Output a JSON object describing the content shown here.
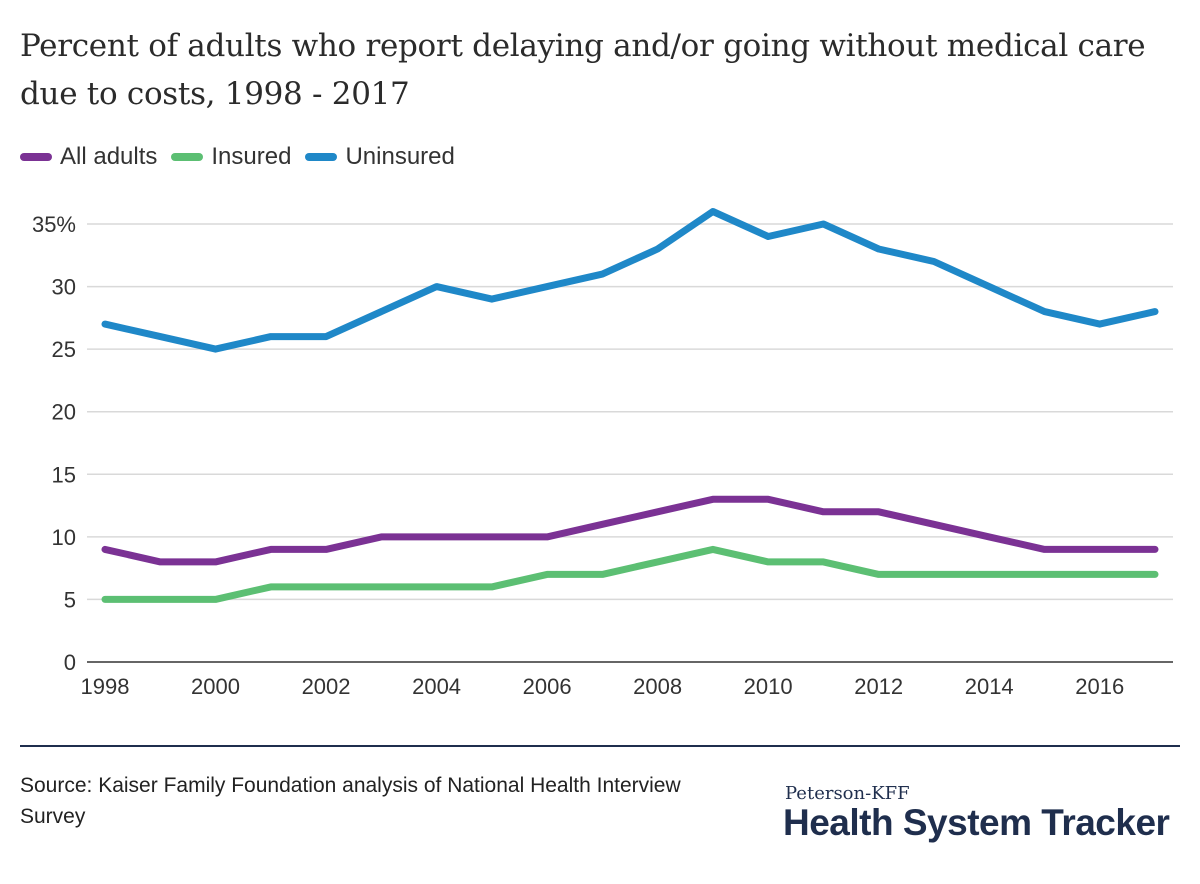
{
  "title": "Percent of adults who report delaying and/or going without medical care due to costs, 1998 - 2017",
  "chart_data": {
    "type": "line",
    "x": [
      1998,
      1999,
      2000,
      2001,
      2002,
      2003,
      2004,
      2005,
      2006,
      2007,
      2008,
      2009,
      2010,
      2011,
      2012,
      2013,
      2014,
      2015,
      2016,
      2017
    ],
    "series": [
      {
        "name": "All adults",
        "color": "#7b3294",
        "values": [
          9,
          8,
          8,
          9,
          9,
          10,
          10,
          10,
          10,
          11,
          12,
          13,
          13,
          12,
          12,
          11,
          10,
          9,
          9,
          9
        ]
      },
      {
        "name": "Insured",
        "color": "#5cbf73",
        "values": [
          5,
          5,
          5,
          6,
          6,
          6,
          6,
          6,
          7,
          7,
          8,
          9,
          8,
          8,
          7,
          7,
          7,
          7,
          7,
          7
        ]
      },
      {
        "name": "Uninsured",
        "color": "#1f88c8",
        "values": [
          27,
          26,
          25,
          26,
          26,
          28,
          30,
          29,
          30,
          31,
          33,
          36,
          34,
          35,
          33,
          32,
          30,
          28,
          27,
          28
        ]
      }
    ],
    "xlim": [
      1998,
      2017
    ],
    "ylim": [
      0,
      35
    ],
    "y_ticks": [
      0,
      5,
      10,
      15,
      20,
      25,
      30,
      35
    ],
    "y_tick_labels": [
      "0",
      "5",
      "10",
      "15",
      "20",
      "25",
      "30",
      "35%"
    ],
    "x_ticks": [
      1998,
      2000,
      2002,
      2004,
      2006,
      2008,
      2010,
      2012,
      2014,
      2016
    ],
    "x_tick_labels": [
      "1998",
      "2000",
      "2002",
      "2004",
      "2006",
      "2008",
      "2010",
      "2012",
      "2014",
      "2016"
    ],
    "grid": true,
    "legend_position": "top-left"
  },
  "source": "Source: Kaiser Family Foundation analysis of National Health Interview Survey",
  "brand": {
    "top": "Peterson-KFF",
    "main": "Health System Tracker"
  }
}
